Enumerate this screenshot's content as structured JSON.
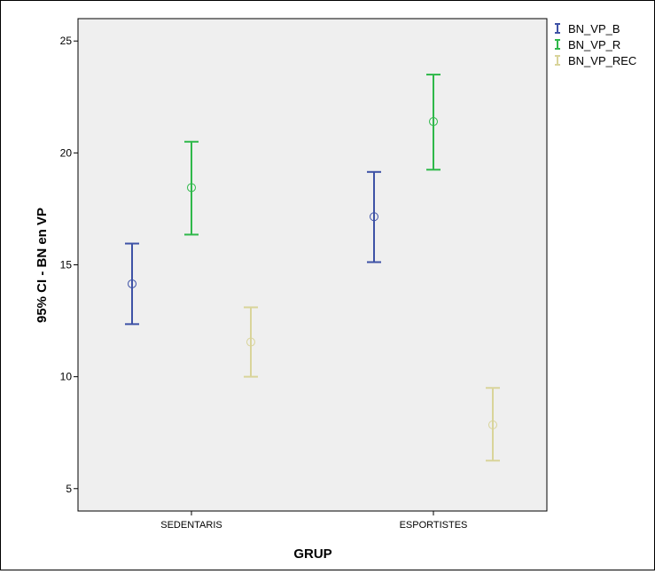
{
  "chart_data": {
    "type": "error-bar",
    "xlabel": "GRUP",
    "ylabel": "95% CI  - BN en VP",
    "categories": [
      "SEDENTARIS",
      "ESPORTISTES"
    ],
    "ylim": [
      4,
      26
    ],
    "yticks": [
      "5",
      "10",
      "15",
      "20",
      "25"
    ],
    "legend_position": "top-right",
    "grid": false,
    "background_color": "#efefef",
    "series": [
      {
        "name": "BN_VP_B",
        "color": "#3e52a6",
        "means": [
          14.15,
          17.15
        ],
        "lower": [
          12.35,
          15.12
        ],
        "upper": [
          15.95,
          19.15
        ]
      },
      {
        "name": "BN_VP_R",
        "color": "#2fb84a",
        "means": [
          18.45,
          21.4
        ],
        "lower": [
          16.35,
          19.25
        ],
        "upper": [
          20.5,
          23.5
        ]
      },
      {
        "name": "BN_VP_REC",
        "color": "#d9d49a",
        "means": [
          11.55,
          7.85
        ],
        "lower": [
          10.0,
          6.25
        ],
        "upper": [
          13.1,
          9.5
        ]
      }
    ]
  }
}
